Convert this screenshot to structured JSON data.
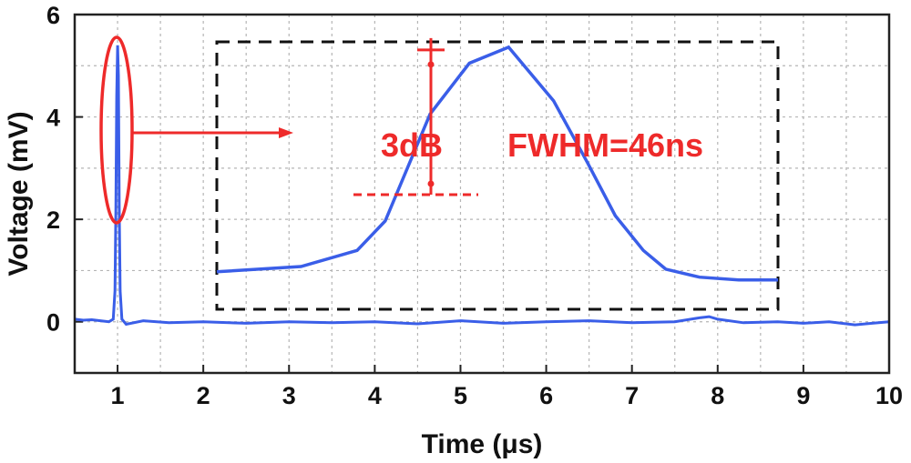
{
  "chart_data": {
    "type": "line",
    "title": "",
    "xlabel": "Time (μs)",
    "ylabel": "Voltage (mV)",
    "xlim": [
      0.5,
      10
    ],
    "ylim": [
      -1,
      6
    ],
    "x_ticks": [
      "1",
      "2",
      "3",
      "4",
      "5",
      "6",
      "7",
      "8",
      "9",
      "10"
    ],
    "y_ticks": [
      "0",
      "2",
      "4",
      "6"
    ],
    "grid": true,
    "line_color": "#3a5ee8",
    "annotation_color": "#ee2a2a",
    "series": [
      {
        "x": [
          0.5,
          0.6,
          0.7,
          0.8,
          0.9,
          0.95,
          0.97,
          0.98,
          0.99,
          1.0,
          1.01,
          1.02,
          1.03,
          1.05,
          1.1,
          1.3,
          1.6,
          2.0,
          2.5,
          3.0,
          3.5,
          4.0,
          4.5,
          5.0,
          5.5,
          6.0,
          6.5,
          7.0,
          7.5,
          7.8,
          7.9,
          8.0,
          8.3,
          8.7,
          9.0,
          9.3,
          9.6,
          9.8,
          10.0
        ],
        "y": [
          0.05,
          0.03,
          0.04,
          0.02,
          0.0,
          0.05,
          0.6,
          2.2,
          4.4,
          5.4,
          4.8,
          2.2,
          0.6,
          0.05,
          -0.05,
          0.02,
          -0.02,
          0.0,
          -0.03,
          0.0,
          -0.02,
          0.0,
          -0.04,
          0.02,
          -0.03,
          0.0,
          0.02,
          -0.02,
          0.0,
          0.08,
          0.1,
          0.05,
          -0.02,
          0.0,
          -0.03,
          0.0,
          -0.06,
          -0.03,
          0.0
        ]
      }
    ],
    "inset": {
      "series": {
        "x": [
          0,
          0.15,
          0.25,
          0.3,
          0.38,
          0.45,
          0.52,
          0.6,
          0.66,
          0.71,
          0.76,
          0.8,
          0.86,
          0.93,
          1.0
        ],
        "y": [
          0.14,
          0.16,
          0.22,
          0.33,
          0.73,
          0.92,
          0.98,
          0.78,
          0.55,
          0.35,
          0.22,
          0.15,
          0.12,
          0.11,
          0.11
        ]
      },
      "peak_label": "3dB",
      "fwhm_label": "FWHM=46ns"
    }
  }
}
